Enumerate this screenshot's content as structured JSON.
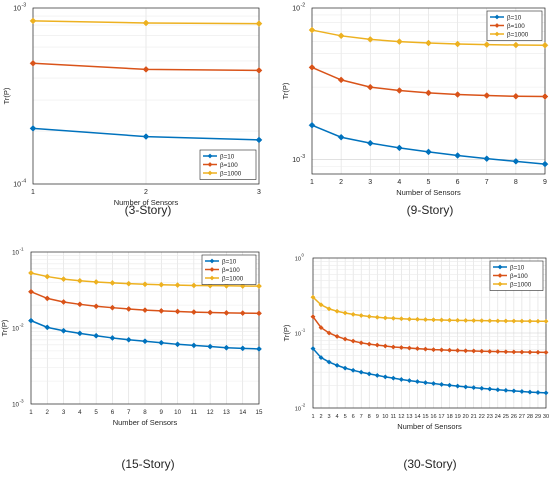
{
  "chart_data": [
    {
      "type": "line",
      "caption": "(3-Story)",
      "xlabel": "Number of Sensors",
      "ylabel": "Tr(P)",
      "yscale": "log",
      "xlim": [
        1,
        3
      ],
      "ylim": [
        0.0001,
        0.001
      ],
      "grid": true,
      "legend_placement": "bottom-right",
      "x": [
        1,
        2,
        3
      ],
      "x_ticks": [
        1,
        2,
        3
      ],
      "y_ticks": [
        {
          "v": 0.0001,
          "b": "10",
          "e": "-4"
        },
        {
          "v": 0.001,
          "b": "10",
          "e": "-3"
        }
      ],
      "series": [
        {
          "name": "β=10",
          "color": "#0072BD",
          "values": [
            0.000207,
            0.000186,
            0.000178
          ]
        },
        {
          "name": "β=100",
          "color": "#D95319",
          "values": [
            0.000485,
            0.000448,
            0.000442
          ]
        },
        {
          "name": "β=1000",
          "color": "#EDB120",
          "values": [
            0.000845,
            0.000822,
            0.000815
          ]
        }
      ]
    },
    {
      "type": "line",
      "caption": "(9-Story)",
      "xlabel": "Number of Sensors",
      "ylabel": "Tr(P)",
      "yscale": "log",
      "xlim": [
        1,
        9
      ],
      "ylim": [
        0.0008,
        0.01
      ],
      "grid": true,
      "legend_placement": "top-right",
      "x": [
        1,
        2,
        3,
        4,
        5,
        6,
        7,
        8,
        9
      ],
      "x_ticks": [
        1,
        2,
        3,
        4,
        5,
        6,
        7,
        8,
        9
      ],
      "y_ticks": [
        {
          "v": 0.001,
          "b": "10",
          "e": "-3"
        },
        {
          "v": 0.01,
          "b": "10",
          "e": "-2"
        }
      ],
      "series": [
        {
          "name": "β=10",
          "color": "#0072BD",
          "values": [
            0.00168,
            0.0014,
            0.00128,
            0.00119,
            0.00112,
            0.00106,
            0.00101,
            0.00097,
            0.00093
          ]
        },
        {
          "name": "β=100",
          "color": "#D95319",
          "values": [
            0.00405,
            0.00335,
            0.003,
            0.00285,
            0.00275,
            0.00268,
            0.00264,
            0.00261,
            0.0026
          ]
        },
        {
          "name": "β=1000",
          "color": "#EDB120",
          "values": [
            0.00715,
            0.00655,
            0.0062,
            0.006,
            0.00587,
            0.00578,
            0.00573,
            0.00569,
            0.00567
          ]
        }
      ]
    },
    {
      "type": "line",
      "caption": "(15-Story)",
      "xlabel": "Number of Sensors",
      "ylabel": "Tr(P)",
      "yscale": "log",
      "xlim": [
        1,
        15
      ],
      "ylim": [
        0.001,
        0.1
      ],
      "grid": true,
      "legend_placement": "top-right",
      "x": [
        1,
        2,
        3,
        4,
        5,
        6,
        7,
        8,
        9,
        10,
        11,
        12,
        13,
        14,
        15
      ],
      "x_ticks": [
        1,
        2,
        3,
        4,
        5,
        6,
        7,
        8,
        9,
        10,
        11,
        12,
        13,
        14,
        15
      ],
      "y_ticks": [
        {
          "v": 0.001,
          "b": "10",
          "e": "-3"
        },
        {
          "v": 0.01,
          "b": "10",
          "e": "-2"
        },
        {
          "v": 0.1,
          "b": "10",
          "e": "-1"
        }
      ],
      "series": [
        {
          "name": "β=10",
          "color": "#0072BD",
          "values": [
            0.0125,
            0.0102,
            0.0092,
            0.0085,
            0.0079,
            0.0074,
            0.007,
            0.0067,
            0.0064,
            0.0061,
            0.0059,
            0.0057,
            0.0055,
            0.0054,
            0.0053
          ]
        },
        {
          "name": "β=100",
          "color": "#D95319",
          "values": [
            0.03,
            0.0245,
            0.022,
            0.0205,
            0.0193,
            0.0185,
            0.0178,
            0.0172,
            0.0168,
            0.0165,
            0.0162,
            0.016,
            0.0158,
            0.0157,
            0.0156
          ]
        },
        {
          "name": "β=1000",
          "color": "#EDB120",
          "values": [
            0.053,
            0.0475,
            0.044,
            0.0418,
            0.0403,
            0.0392,
            0.0383,
            0.0376,
            0.0371,
            0.0367,
            0.0363,
            0.0361,
            0.0359,
            0.0357,
            0.0356
          ]
        }
      ]
    },
    {
      "type": "line",
      "caption": "(30-Story)",
      "xlabel": "Number of Sensors",
      "ylabel": "Tr(P)",
      "yscale": "log",
      "xlim": [
        1,
        30
      ],
      "ylim": [
        0.01,
        1
      ],
      "grid": true,
      "legend_placement": "top-right",
      "x": [
        1,
        2,
        3,
        4,
        5,
        6,
        7,
        8,
        9,
        10,
        11,
        12,
        13,
        14,
        15,
        16,
        17,
        18,
        19,
        20,
        21,
        22,
        23,
        24,
        25,
        26,
        27,
        28,
        29,
        30
      ],
      "x_ticks": [
        1,
        2,
        3,
        4,
        5,
        6,
        7,
        8,
        9,
        10,
        11,
        12,
        13,
        14,
        15,
        16,
        17,
        18,
        19,
        20,
        21,
        22,
        23,
        24,
        25,
        26,
        27,
        28,
        29,
        30
      ],
      "y_ticks": [
        {
          "v": 0.01,
          "b": "10",
          "e": "-2"
        },
        {
          "v": 0.1,
          "b": "10",
          "e": "-1"
        },
        {
          "v": 1,
          "b": "10",
          "e": "0"
        }
      ],
      "series": [
        {
          "name": "β=10",
          "color": "#0072BD",
          "values": [
            0.062,
            0.047,
            0.041,
            0.037,
            0.034,
            0.0318,
            0.03,
            0.0285,
            0.0272,
            0.026,
            0.025,
            0.024,
            0.0232,
            0.0225,
            0.0218,
            0.0212,
            0.0206,
            0.0201,
            0.0196,
            0.0191,
            0.0187,
            0.0183,
            0.0179,
            0.0175,
            0.0172,
            0.0169,
            0.0166,
            0.0163,
            0.0161,
            0.0159
          ]
        },
        {
          "name": "β=100",
          "color": "#D95319",
          "values": [
            0.165,
            0.118,
            0.1,
            0.09,
            0.083,
            0.078,
            0.074,
            0.071,
            0.069,
            0.067,
            0.065,
            0.064,
            0.063,
            0.062,
            0.061,
            0.06,
            0.0595,
            0.059,
            0.0585,
            0.058,
            0.0576,
            0.0572,
            0.0568,
            0.0565,
            0.0562,
            0.0559,
            0.0557,
            0.0555,
            0.0553,
            0.0551
          ]
        },
        {
          "name": "β=1000",
          "color": "#EDB120",
          "values": [
            0.3,
            0.238,
            0.21,
            0.195,
            0.185,
            0.177,
            0.171,
            0.166,
            0.162,
            0.159,
            0.157,
            0.155,
            0.153,
            0.152,
            0.151,
            0.15,
            0.149,
            0.148,
            0.1475,
            0.147,
            0.1465,
            0.146,
            0.1455,
            0.145,
            0.1447,
            0.1444,
            0.1441,
            0.1438,
            0.1435,
            0.1432
          ]
        }
      ]
    }
  ]
}
